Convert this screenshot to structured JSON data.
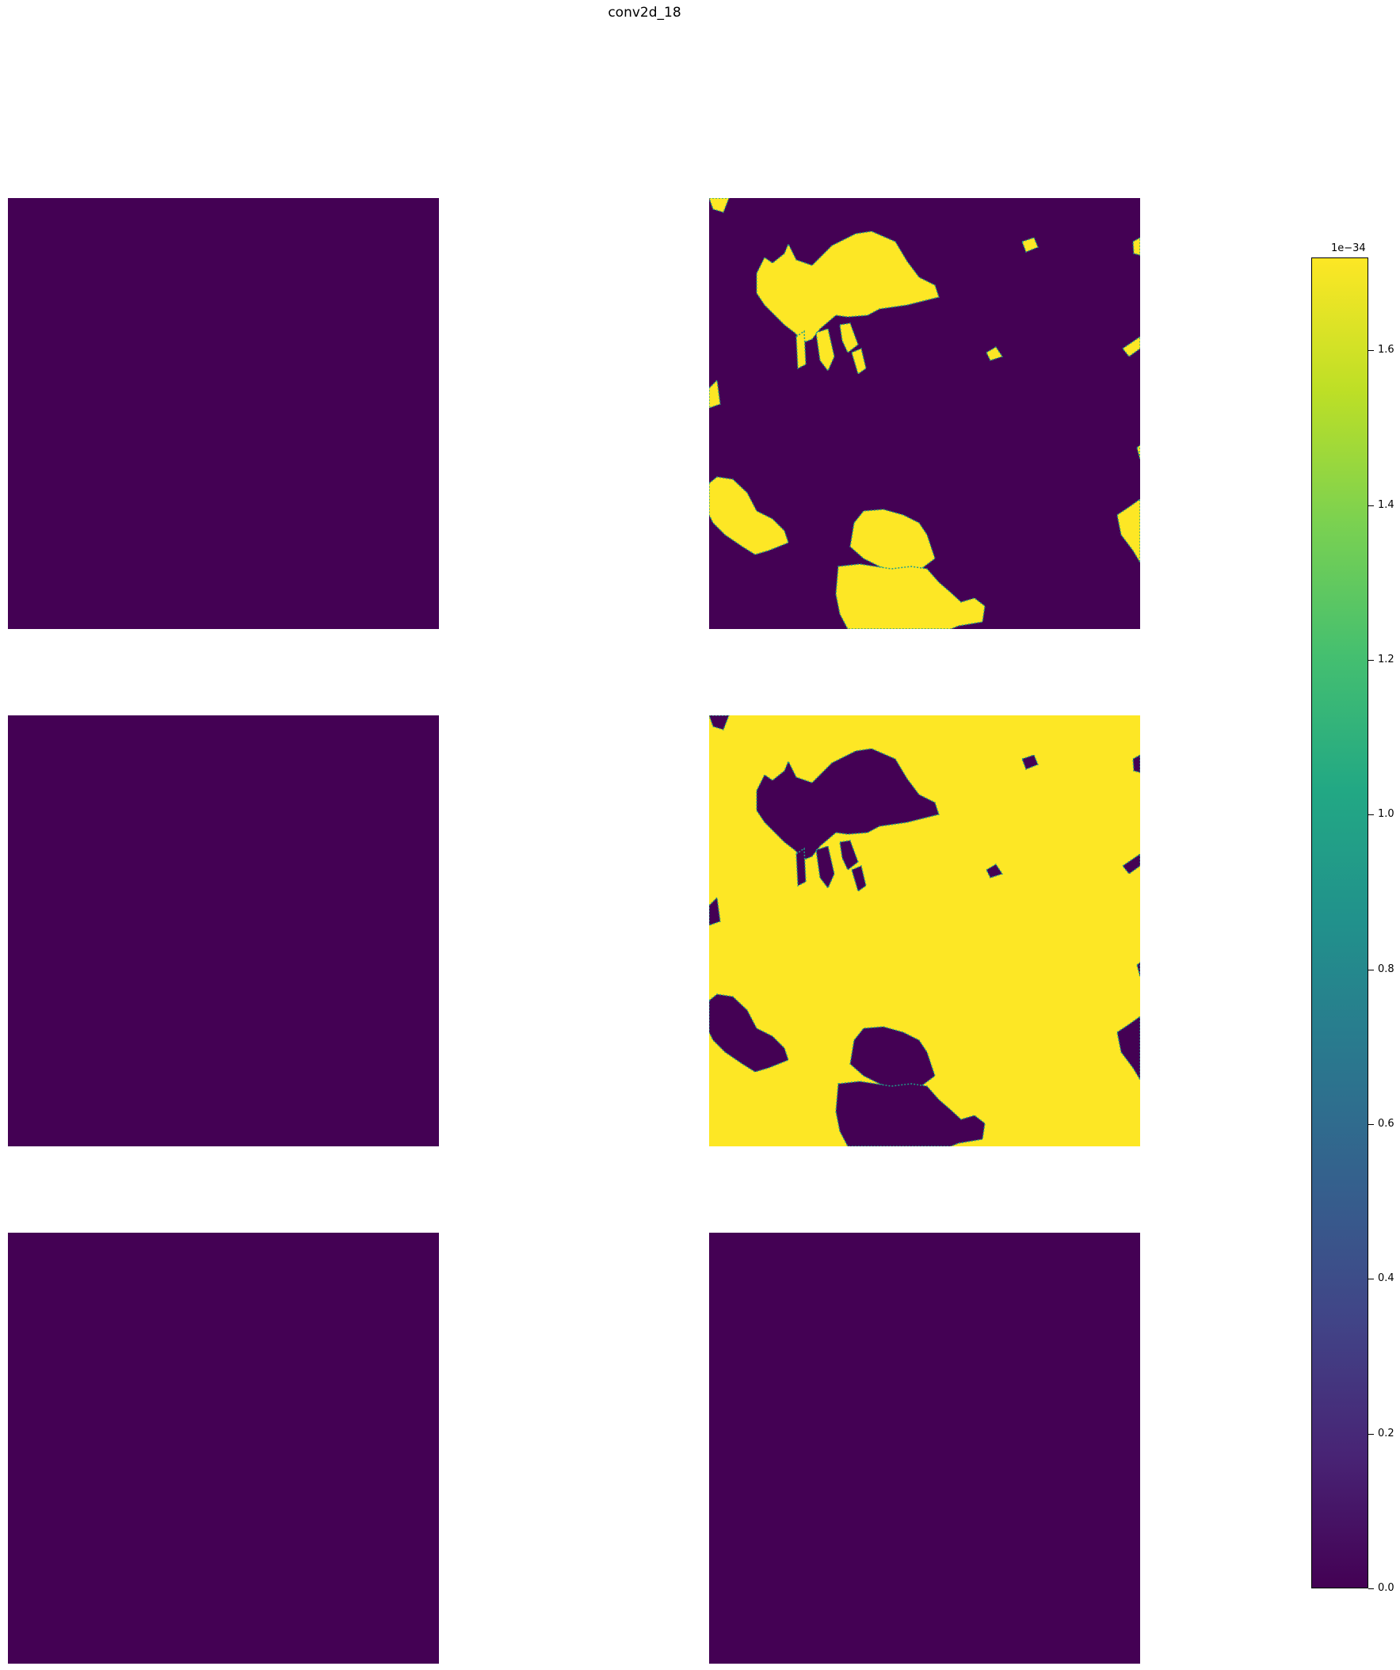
{
  "chart_data": {
    "type": "heatmap",
    "title": "conv2d_18",
    "colormap": "viridis",
    "panels": [
      {
        "row": 1,
        "col": 1,
        "content": "uniform-zero"
      },
      {
        "row": 1,
        "col": 2,
        "content": "sparse-yellow-blobs"
      },
      {
        "row": 2,
        "col": 1,
        "content": "uniform-zero"
      },
      {
        "row": 2,
        "col": 2,
        "content": "mostly-yellow-with-dark-blobs"
      },
      {
        "row": 3,
        "col": 1,
        "content": "uniform-zero"
      },
      {
        "row": 3,
        "col": 2,
        "content": "uniform-zero"
      }
    ],
    "colorbar": {
      "min": 0.0,
      "max": 1.72,
      "exponent_label": "1e−34",
      "ticks": [
        "0.0",
        "0.2",
        "0.4",
        "0.6",
        "0.8",
        "1.0",
        "1.2",
        "1.4",
        "1.6"
      ]
    },
    "colors": {
      "low": "#440154",
      "high": "#fde725",
      "edge": "#1f9e89"
    }
  }
}
